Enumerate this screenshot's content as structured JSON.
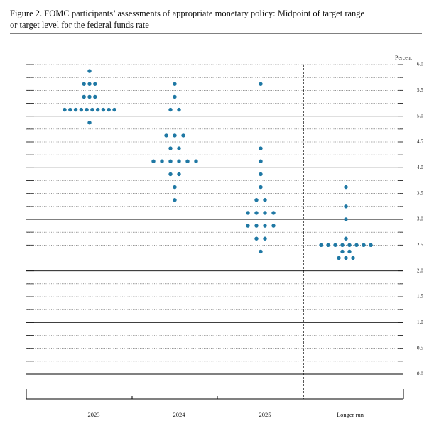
{
  "chart_data": {
    "type": "dot",
    "title": [
      "Figure 2.  FOMC participants’ assessments of appropriate monetary policy: Midpoint of target range",
      "or target level for the federal funds rate"
    ],
    "ylabel": "Percent",
    "categories": [
      "2023",
      "2024",
      "2025",
      "Longer run"
    ],
    "values": [
      [
        5.875,
        5.625,
        5.625,
        5.625,
        5.375,
        5.375,
        5.375,
        5.125,
        5.125,
        5.125,
        5.125,
        5.125,
        5.125,
        5.125,
        5.125,
        5.125,
        5.125,
        4.875
      ],
      [
        5.625,
        5.375,
        5.125,
        5.125,
        4.625,
        4.625,
        4.625,
        4.375,
        4.375,
        4.125,
        4.125,
        4.125,
        4.125,
        4.125,
        4.125,
        3.875,
        3.875,
        3.625,
        3.375
      ],
      [
        5.625,
        4.375,
        4.125,
        3.875,
        3.625,
        3.375,
        3.375,
        3.125,
        3.125,
        3.125,
        3.125,
        2.875,
        2.875,
        2.875,
        2.875,
        2.625,
        2.625,
        2.375
      ],
      [
        3.625,
        3.25,
        3.0,
        2.625,
        2.5,
        2.5,
        2.5,
        2.5,
        2.5,
        2.5,
        2.5,
        2.5,
        2.375,
        2.375,
        2.25,
        2.25,
        2.25
      ]
    ],
    "color": "#1f78a4",
    "ylim": [
      0,
      6
    ],
    "yticks": [
      {
        "value": 0,
        "label": "0.0"
      },
      0.5,
      {
        "value": 1,
        "label": "1.0"
      },
      1.5,
      {
        "value": 2,
        "label": "2.0"
      },
      2.5,
      {
        "value": 3,
        "label": "3.0"
      },
      3.5,
      {
        "value": 4,
        "label": "4.0"
      },
      4.5,
      {
        "value": 5,
        "label": "5.0"
      },
      5.5,
      {
        "value": 6,
        "label": "6.0"
      }
    ],
    "minor_yticks": [
      0.25,
      0.75,
      1.25,
      1.75,
      2.25,
      2.75,
      3.25,
      3.75,
      4.25,
      4.75,
      5.25,
      5.75
    ],
    "grid": true
  }
}
